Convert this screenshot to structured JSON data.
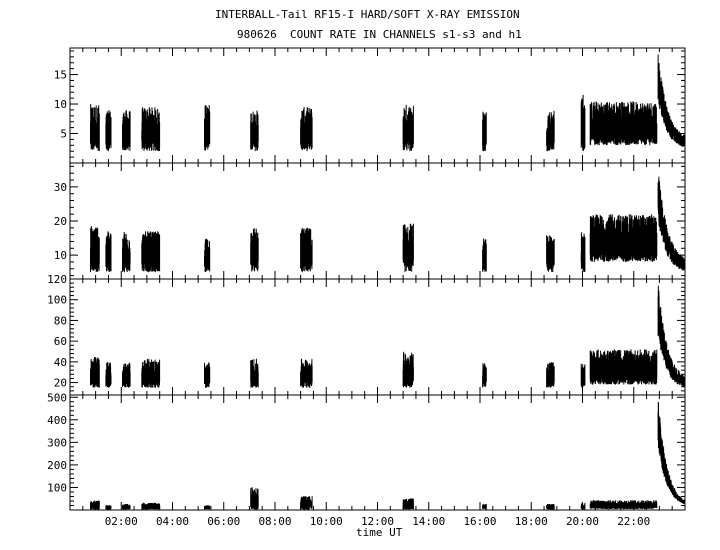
{
  "title": "INTERBALL-Tail RF15-I HARD/SOFT X-RAY EMISSION",
  "subtitle": "980626  COUNT RATE IN CHANNELS s1-s3 and h1",
  "xlabel": "time UT",
  "chart_data": [
    {
      "type": "line",
      "panel": "s1",
      "xlabel": "time UT",
      "xlim": [
        0,
        24
      ],
      "xticks": [
        "02:00",
        "04:00",
        "06:00",
        "08:00",
        "10:00",
        "12:00",
        "14:00",
        "16:00",
        "18:00",
        "20:00",
        "22:00"
      ],
      "ylim": [
        0,
        19.5
      ],
      "yticks": [
        5,
        10,
        15
      ],
      "bursts": [
        {
          "start": 0.8,
          "end": 1.15,
          "base": 2,
          "amp": 8
        },
        {
          "start": 1.4,
          "end": 1.6,
          "base": 2,
          "amp": 7
        },
        {
          "start": 2.05,
          "end": 2.35,
          "base": 2,
          "amp": 7
        },
        {
          "start": 2.8,
          "end": 3.5,
          "base": 2,
          "amp": 7.5
        },
        {
          "start": 5.25,
          "end": 5.45,
          "base": 2,
          "amp": 8
        },
        {
          "start": 7.05,
          "end": 7.35,
          "base": 2,
          "amp": 7
        },
        {
          "start": 9.0,
          "end": 9.45,
          "base": 2,
          "amp": 7.5
        },
        {
          "start": 13.0,
          "end": 13.4,
          "base": 2,
          "amp": 8
        },
        {
          "start": 16.1,
          "end": 16.25,
          "base": 2,
          "amp": 7
        },
        {
          "start": 18.6,
          "end": 18.9,
          "base": 2,
          "amp": 7
        },
        {
          "start": 19.95,
          "end": 20.1,
          "base": 2,
          "amp": 10
        },
        {
          "start": 20.3,
          "end": 22.9,
          "base": 3,
          "amp": 7.5
        }
      ],
      "decay": {
        "start": 22.95,
        "end": 24,
        "peak": 19,
        "floor": 4
      }
    },
    {
      "type": "line",
      "panel": "s2",
      "xlim": [
        0,
        24
      ],
      "ylim": [
        3,
        37
      ],
      "yticks": [
        10,
        20,
        30
      ],
      "bursts": [
        {
          "start": 0.8,
          "end": 1.15,
          "base": 5,
          "amp": 14
        },
        {
          "start": 1.4,
          "end": 1.6,
          "base": 5,
          "amp": 12
        },
        {
          "start": 2.05,
          "end": 2.35,
          "base": 5,
          "amp": 12
        },
        {
          "start": 2.8,
          "end": 3.5,
          "base": 5,
          "amp": 12
        },
        {
          "start": 5.25,
          "end": 5.45,
          "base": 5,
          "amp": 10
        },
        {
          "start": 7.05,
          "end": 7.35,
          "base": 5,
          "amp": 13
        },
        {
          "start": 9.0,
          "end": 9.45,
          "base": 5,
          "amp": 13
        },
        {
          "start": 13.0,
          "end": 13.4,
          "base": 5,
          "amp": 15
        },
        {
          "start": 16.1,
          "end": 16.25,
          "base": 5,
          "amp": 10
        },
        {
          "start": 18.6,
          "end": 18.9,
          "base": 5,
          "amp": 11
        },
        {
          "start": 19.95,
          "end": 20.1,
          "base": 5,
          "amp": 12
        },
        {
          "start": 20.3,
          "end": 22.9,
          "base": 8,
          "amp": 14
        }
      ],
      "decay": {
        "start": 22.95,
        "end": 24,
        "peak": 36,
        "floor": 8
      }
    },
    {
      "type": "line",
      "panel": "s3",
      "xlim": [
        0,
        24
      ],
      "ylim": [
        8,
        120
      ],
      "yticks": [
        20,
        40,
        60,
        80,
        100,
        120
      ],
      "bursts": [
        {
          "start": 0.8,
          "end": 1.15,
          "base": 15,
          "amp": 30
        },
        {
          "start": 1.4,
          "end": 1.6,
          "base": 15,
          "amp": 25
        },
        {
          "start": 2.05,
          "end": 2.35,
          "base": 15,
          "amp": 25
        },
        {
          "start": 2.8,
          "end": 3.5,
          "base": 15,
          "amp": 28
        },
        {
          "start": 5.25,
          "end": 5.45,
          "base": 15,
          "amp": 25
        },
        {
          "start": 7.05,
          "end": 7.35,
          "base": 15,
          "amp": 28
        },
        {
          "start": 9.0,
          "end": 9.45,
          "base": 15,
          "amp": 28
        },
        {
          "start": 13.0,
          "end": 13.4,
          "base": 15,
          "amp": 35
        },
        {
          "start": 16.1,
          "end": 16.25,
          "base": 15,
          "amp": 25
        },
        {
          "start": 18.6,
          "end": 18.9,
          "base": 15,
          "amp": 25
        },
        {
          "start": 19.95,
          "end": 20.1,
          "base": 15,
          "amp": 25
        },
        {
          "start": 20.3,
          "end": 22.9,
          "base": 18,
          "amp": 34
        }
      ],
      "decay": {
        "start": 22.95,
        "end": 24,
        "peak": 118,
        "floor": 22
      }
    },
    {
      "type": "line",
      "panel": "h1",
      "xlim": [
        0,
        24
      ],
      "ylim": [
        0,
        510
      ],
      "yticks": [
        100,
        200,
        300,
        400,
        500
      ],
      "bursts": [
        {
          "start": 0.8,
          "end": 1.15,
          "base": 2,
          "amp": 40
        },
        {
          "start": 1.4,
          "end": 1.6,
          "base": 2,
          "amp": 20
        },
        {
          "start": 2.05,
          "end": 2.35,
          "base": 2,
          "amp": 25
        },
        {
          "start": 2.8,
          "end": 3.5,
          "base": 2,
          "amp": 30
        },
        {
          "start": 5.25,
          "end": 5.45,
          "base": 2,
          "amp": 20
        },
        {
          "start": 7.05,
          "end": 7.35,
          "base": 2,
          "amp": 100
        },
        {
          "start": 9.0,
          "end": 9.45,
          "base": 2,
          "amp": 60
        },
        {
          "start": 13.0,
          "end": 13.4,
          "base": 2,
          "amp": 50
        },
        {
          "start": 16.1,
          "end": 16.25,
          "base": 2,
          "amp": 25
        },
        {
          "start": 18.6,
          "end": 18.9,
          "base": 2,
          "amp": 25
        },
        {
          "start": 19.95,
          "end": 20.1,
          "base": 2,
          "amp": 30
        },
        {
          "start": 20.3,
          "end": 22.9,
          "base": 4,
          "amp": 40
        }
      ],
      "decay": {
        "start": 22.95,
        "end": 24,
        "peak": 505,
        "floor": 20
      }
    }
  ]
}
